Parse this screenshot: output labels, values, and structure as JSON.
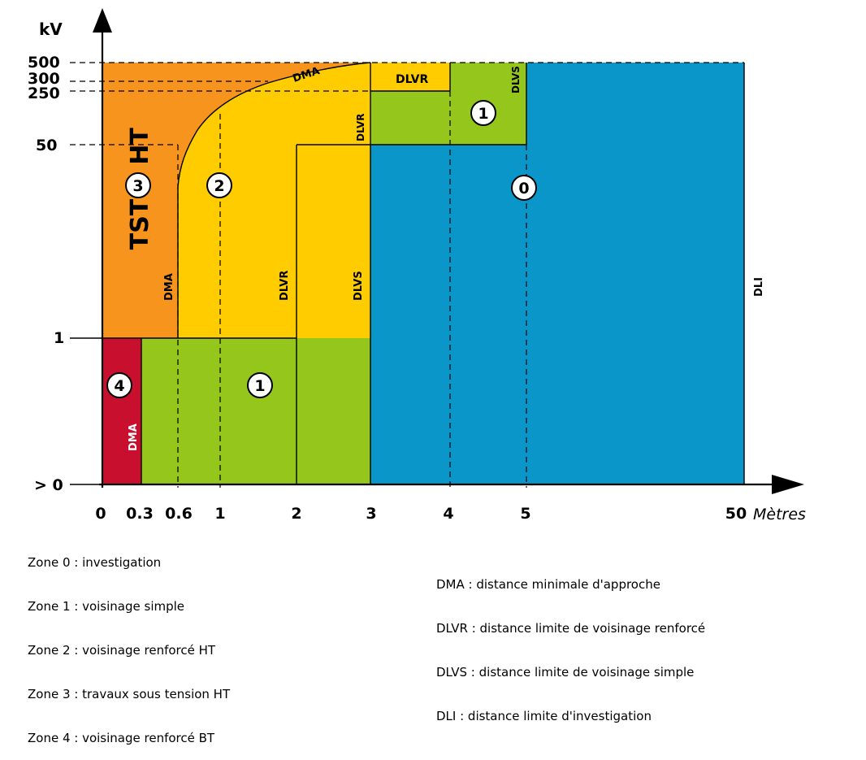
{
  "axes": {
    "y_unit": "kV",
    "x_unit": "Mètres",
    "y_ticks": [
      "500",
      "300",
      "250",
      "50",
      "1",
      "> 0"
    ],
    "x_ticks": [
      "0",
      "0.3",
      "0.6",
      "1",
      "2",
      "3",
      "4",
      "5",
      "50"
    ]
  },
  "zone_numbers": {
    "z0": "0",
    "z1_top": "1",
    "z1_bottom": "1",
    "z2": "2",
    "z3": "3",
    "z4": "4"
  },
  "zone_text": {
    "tst_ht": "TST",
    "ht": "HT"
  },
  "boundary_labels": {
    "dma_curve": "DMA",
    "dma_vertical": "DMA",
    "dma_bt": "DMA",
    "dlvr_top_box": "DLVR",
    "dlvr_small": "DLVR",
    "dlvr_vertical": "DLVR",
    "dlvs_small": "DLVS",
    "dlvs_vertical": "DLVS",
    "dli": "DLI"
  },
  "colors": {
    "zone0": "#0a96c9",
    "zone1": "#94c61c",
    "zone2": "#ffcc00",
    "zone3": "#f7941d",
    "zone4": "#c8102e"
  },
  "legend_zones": [
    "Zone 0 : investigation",
    "Zone 1 : voisinage simple",
    "Zone 2 : voisinage renforcé HT",
    "Zone 3 : travaux sous tension HT",
    "Zone 4 : voisinage renforcé BT"
  ],
  "legend_abbrev": [
    "DMA : distance minimale d'approche",
    "DLVR : distance limite de voisinage renforcé",
    "DLVS : distance limite de voisinage simple",
    "DLI : distance limite d'investigation"
  ]
}
